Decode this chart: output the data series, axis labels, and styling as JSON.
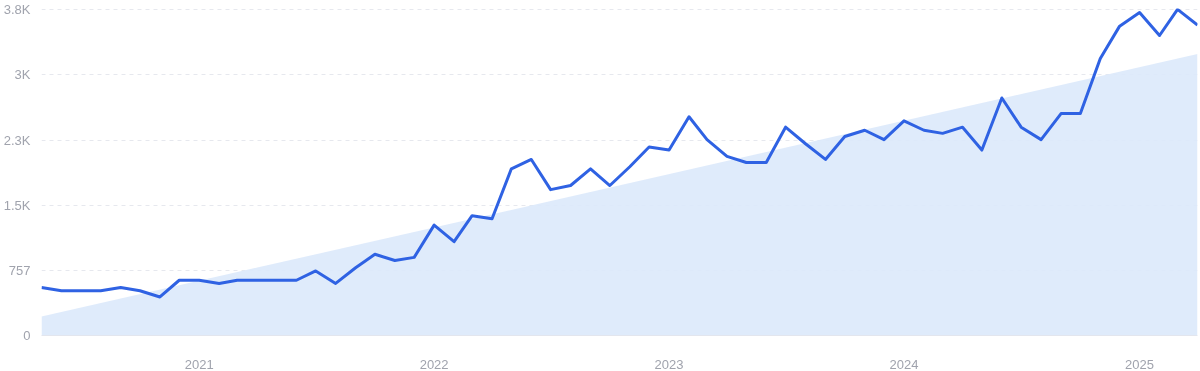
{
  "chart_data": {
    "type": "line",
    "x": [
      "2020-05",
      "2020-06",
      "2020-07",
      "2020-08",
      "2020-09",
      "2020-10",
      "2020-11",
      "2020-12",
      "2021-01",
      "2021-02",
      "2021-03",
      "2021-04",
      "2021-05",
      "2021-06",
      "2021-07",
      "2021-08",
      "2021-09",
      "2021-10",
      "2021-11",
      "2021-12",
      "2022-01",
      "2022-02",
      "2022-03",
      "2022-04",
      "2022-05",
      "2022-06",
      "2022-07",
      "2022-08",
      "2022-09",
      "2022-10",
      "2022-11",
      "2022-12",
      "2023-01",
      "2023-02",
      "2023-03",
      "2023-04",
      "2023-05",
      "2023-06",
      "2023-07",
      "2023-08",
      "2023-09",
      "2023-10",
      "2023-11",
      "2023-12",
      "2024-01",
      "2024-02",
      "2024-03",
      "2024-04",
      "2024-05",
      "2024-06",
      "2024-07",
      "2024-08",
      "2024-09",
      "2024-10",
      "2024-11",
      "2024-12",
      "2025-01",
      "2025-02",
      "2025-03",
      "2025-04"
    ],
    "series": [
      {
        "type": "area",
        "color": "#dce9fb",
        "x": [
          "2020-05",
          "2025-04"
        ],
        "values": [
          220,
          3270
        ]
      },
      {
        "color": "#2f62e3",
        "values": [
          557,
          520,
          520,
          520,
          557,
          520,
          448,
          642,
          642,
          605,
          642,
          642,
          642,
          642,
          750,
          605,
          787,
          944,
          872,
          908,
          1283,
          1090,
          1392,
          1356,
          1937,
          2046,
          1695,
          1743,
          1937,
          1743,
          1961,
          2191,
          2155,
          2542,
          2276,
          2082,
          2010,
          2010,
          2421,
          2228,
          2046,
          2312,
          2385,
          2276,
          2494,
          2385,
          2349,
          2421,
          2155,
          2760,
          2421,
          2276,
          2579,
          2579,
          3220,
          3595,
          3753,
          3486,
          3790,
          3608
        ]
      }
    ],
    "xlim": [
      "2020-05",
      "2025-04"
    ],
    "xticks": [
      "2021",
      "2022",
      "2023",
      "2024",
      "2025"
    ],
    "ylim": [
      0,
      3800
    ],
    "yticks": [
      0,
      {
        "value": 757,
        "label": "757"
      },
      {
        "value": 1514,
        "label": "1.5K"
      },
      {
        "value": 2271,
        "label": "2.3K"
      },
      {
        "value": 3028,
        "label": "3K"
      },
      {
        "value": 3785,
        "label": "3.8K"
      }
    ],
    "grid": "y",
    "marker": "none",
    "line_style": "solid"
  }
}
